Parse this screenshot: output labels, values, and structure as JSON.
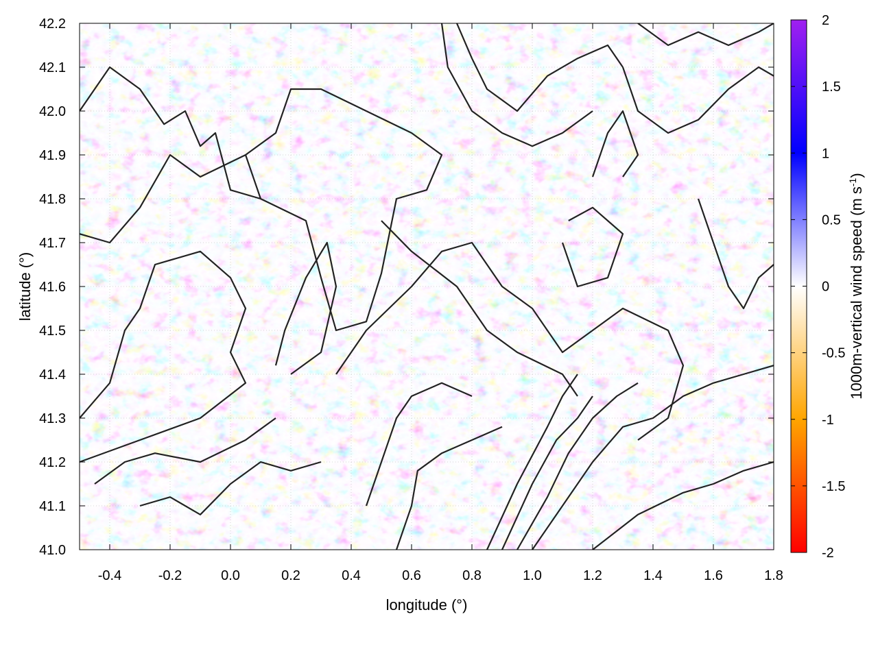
{
  "chart_data": {
    "type": "heatmap",
    "title": "",
    "xlabel": "longitude (°)",
    "ylabel": "latitude (°)",
    "xlim": [
      -0.5,
      1.8
    ],
    "ylim": [
      41.0,
      42.2
    ],
    "x_ticks": [
      -0.4,
      -0.2,
      0.0,
      0.2,
      0.4,
      0.6,
      0.8,
      1.0,
      1.2,
      1.4,
      1.6,
      1.8
    ],
    "x_tick_labels": [
      "-0.4",
      "-0.2",
      "0.0",
      "0.2",
      "0.4",
      "0.6",
      "0.8",
      "1.0",
      "1.2",
      "1.4",
      "1.6",
      "1.8"
    ],
    "y_ticks": [
      41.0,
      41.1,
      41.2,
      41.3,
      41.4,
      41.5,
      41.6,
      41.7,
      41.8,
      41.9,
      42.0,
      42.1,
      42.2
    ],
    "y_tick_labels": [
      "41.0",
      "41.1",
      "41.2",
      "41.3",
      "41.4",
      "41.5",
      "41.6",
      "41.7",
      "41.8",
      "41.9",
      "42.0",
      "42.1",
      "42.2"
    ],
    "grid": true,
    "colorbar": {
      "label_prefix": "1000m-vertical wind speed (m s",
      "label_sup": "-1",
      "label_suffix": ")",
      "range": [
        -2,
        2
      ],
      "ticks": [
        2,
        1.5,
        1,
        0.5,
        0,
        -0.5,
        -1,
        -1.5,
        -2
      ],
      "tick_labels": [
        "2",
        "1.5",
        "1",
        "0.5",
        "0",
        "-0.5",
        "-1",
        "-1.5",
        "-2"
      ],
      "stops": [
        {
          "value": -2,
          "color": "#ff0000"
        },
        {
          "value": -1,
          "color": "#ffa500"
        },
        {
          "value": 0,
          "color": "#ffffff"
        },
        {
          "value": 1,
          "color": "#0000ff"
        },
        {
          "value": 2,
          "color": "#a020f0"
        }
      ]
    },
    "contour_color": "#222222",
    "contours": [
      [
        [
          -0.5,
          42.0
        ],
        [
          -0.4,
          42.1
        ],
        [
          -0.3,
          42.05
        ],
        [
          -0.22,
          41.97
        ],
        [
          -0.15,
          42.0
        ],
        [
          -0.1,
          41.92
        ],
        [
          -0.05,
          41.95
        ],
        [
          0.0,
          41.82
        ],
        [
          0.1,
          41.8
        ],
        [
          0.05,
          41.9
        ],
        [
          -0.1,
          41.85
        ],
        [
          -0.2,
          41.9
        ],
        [
          -0.3,
          41.78
        ],
        [
          -0.4,
          41.7
        ],
        [
          -0.5,
          41.72
        ]
      ],
      [
        [
          -0.5,
          41.3
        ],
        [
          -0.4,
          41.38
        ],
        [
          -0.35,
          41.5
        ],
        [
          -0.3,
          41.55
        ],
        [
          -0.25,
          41.65
        ],
        [
          -0.1,
          41.68
        ],
        [
          0.0,
          41.62
        ],
        [
          0.05,
          41.55
        ],
        [
          0.0,
          41.45
        ],
        [
          0.05,
          41.38
        ],
        [
          -0.1,
          41.3
        ],
        [
          -0.3,
          41.25
        ],
        [
          -0.5,
          41.2
        ]
      ],
      [
        [
          0.1,
          41.8
        ],
        [
          0.25,
          41.75
        ],
        [
          0.3,
          41.62
        ],
        [
          0.35,
          41.5
        ],
        [
          0.45,
          41.52
        ],
        [
          0.5,
          41.63
        ],
        [
          0.55,
          41.8
        ],
        [
          0.65,
          41.82
        ],
        [
          0.7,
          41.9
        ],
        [
          0.6,
          41.95
        ],
        [
          0.45,
          42.0
        ],
        [
          0.3,
          42.05
        ],
        [
          0.2,
          42.05
        ],
        [
          0.15,
          41.95
        ],
        [
          0.05,
          41.9
        ]
      ],
      [
        [
          0.2,
          41.4
        ],
        [
          0.3,
          41.45
        ],
        [
          0.35,
          41.6
        ],
        [
          0.32,
          41.7
        ],
        [
          0.25,
          41.62
        ],
        [
          0.18,
          41.5
        ],
        [
          0.15,
          41.42
        ]
      ],
      [
        [
          0.35,
          41.4
        ],
        [
          0.45,
          41.5
        ],
        [
          0.6,
          41.6
        ],
        [
          0.7,
          41.68
        ],
        [
          0.8,
          41.7
        ],
        [
          0.9,
          41.6
        ],
        [
          1.0,
          41.55
        ],
        [
          1.1,
          41.45
        ],
        [
          1.2,
          41.5
        ],
        [
          1.3,
          41.55
        ],
        [
          1.45,
          41.5
        ],
        [
          1.5,
          41.42
        ],
        [
          1.45,
          41.3
        ],
        [
          1.35,
          41.25
        ]
      ],
      [
        [
          0.5,
          41.75
        ],
        [
          0.6,
          41.68
        ],
        [
          0.75,
          41.6
        ],
        [
          0.85,
          41.5
        ],
        [
          0.95,
          41.45
        ],
        [
          1.1,
          41.4
        ],
        [
          1.15,
          41.35
        ]
      ],
      [
        [
          1.0,
          41.0
        ],
        [
          1.1,
          41.1
        ],
        [
          1.2,
          41.2
        ],
        [
          1.3,
          41.28
        ],
        [
          1.4,
          41.3
        ],
        [
          1.5,
          41.35
        ],
        [
          1.6,
          41.38
        ],
        [
          1.7,
          41.4
        ],
        [
          1.8,
          41.42
        ]
      ],
      [
        [
          0.95,
          41.0
        ],
        [
          1.05,
          41.12
        ],
        [
          1.12,
          41.22
        ],
        [
          1.2,
          41.3
        ],
        [
          1.28,
          41.35
        ],
        [
          1.35,
          41.38
        ]
      ],
      [
        [
          0.9,
          41.0
        ],
        [
          1.0,
          41.15
        ],
        [
          1.08,
          41.25
        ],
        [
          1.15,
          41.3
        ],
        [
          1.2,
          41.35
        ]
      ],
      [
        [
          0.85,
          41.0
        ],
        [
          0.95,
          41.15
        ],
        [
          1.05,
          41.28
        ],
        [
          1.1,
          41.35
        ],
        [
          1.15,
          41.4
        ]
      ],
      [
        [
          1.2,
          41.0
        ],
        [
          1.35,
          41.08
        ],
        [
          1.5,
          41.13
        ],
        [
          1.6,
          41.15
        ],
        [
          1.7,
          41.18
        ],
        [
          1.8,
          41.2
        ]
      ],
      [
        [
          0.55,
          41.0
        ],
        [
          0.6,
          41.1
        ],
        [
          0.62,
          41.18
        ],
        [
          0.7,
          41.22
        ],
        [
          0.8,
          41.25
        ],
        [
          0.9,
          41.28
        ]
      ],
      [
        [
          0.45,
          41.1
        ],
        [
          0.5,
          41.2
        ],
        [
          0.55,
          41.3
        ],
        [
          0.6,
          41.35
        ],
        [
          0.7,
          41.38
        ],
        [
          0.8,
          41.35
        ]
      ],
      [
        [
          0.75,
          42.2
        ],
        [
          0.8,
          42.12
        ],
        [
          0.85,
          42.05
        ],
        [
          0.95,
          42.0
        ],
        [
          1.05,
          42.08
        ],
        [
          1.15,
          42.12
        ],
        [
          1.25,
          42.15
        ],
        [
          1.3,
          42.1
        ]
      ],
      [
        [
          0.7,
          42.2
        ],
        [
          0.72,
          42.1
        ],
        [
          0.8,
          42.0
        ],
        [
          0.9,
          41.95
        ],
        [
          1.0,
          41.92
        ],
        [
          1.1,
          41.95
        ],
        [
          1.2,
          42.0
        ]
      ],
      [
        [
          1.3,
          42.1
        ],
        [
          1.35,
          42.0
        ],
        [
          1.45,
          41.95
        ],
        [
          1.55,
          41.98
        ],
        [
          1.65,
          42.05
        ],
        [
          1.75,
          42.1
        ],
        [
          1.8,
          42.08
        ]
      ],
      [
        [
          1.35,
          42.2
        ],
        [
          1.45,
          42.15
        ],
        [
          1.55,
          42.18
        ],
        [
          1.65,
          42.15
        ],
        [
          1.75,
          42.18
        ],
        [
          1.8,
          42.2
        ]
      ],
      [
        [
          1.55,
          41.8
        ],
        [
          1.6,
          41.7
        ],
        [
          1.65,
          41.6
        ],
        [
          1.7,
          41.55
        ],
        [
          1.75,
          41.62
        ],
        [
          1.8,
          41.65
        ]
      ],
      [
        [
          -0.3,
          41.1
        ],
        [
          -0.2,
          41.12
        ],
        [
          -0.1,
          41.08
        ],
        [
          0.0,
          41.15
        ],
        [
          0.1,
          41.2
        ],
        [
          0.2,
          41.18
        ],
        [
          0.3,
          41.2
        ]
      ],
      [
        [
          -0.45,
          41.15
        ],
        [
          -0.35,
          41.2
        ],
        [
          -0.25,
          41.22
        ],
        [
          -0.1,
          41.2
        ],
        [
          0.05,
          41.25
        ],
        [
          0.15,
          41.3
        ]
      ],
      [
        [
          1.1,
          41.7
        ],
        [
          1.15,
          41.6
        ],
        [
          1.25,
          41.62
        ],
        [
          1.3,
          41.72
        ],
        [
          1.2,
          41.78
        ],
        [
          1.12,
          41.75
        ]
      ],
      [
        [
          1.2,
          41.85
        ],
        [
          1.25,
          41.95
        ],
        [
          1.3,
          42.0
        ],
        [
          1.35,
          41.9
        ],
        [
          1.3,
          41.85
        ]
      ]
    ]
  }
}
